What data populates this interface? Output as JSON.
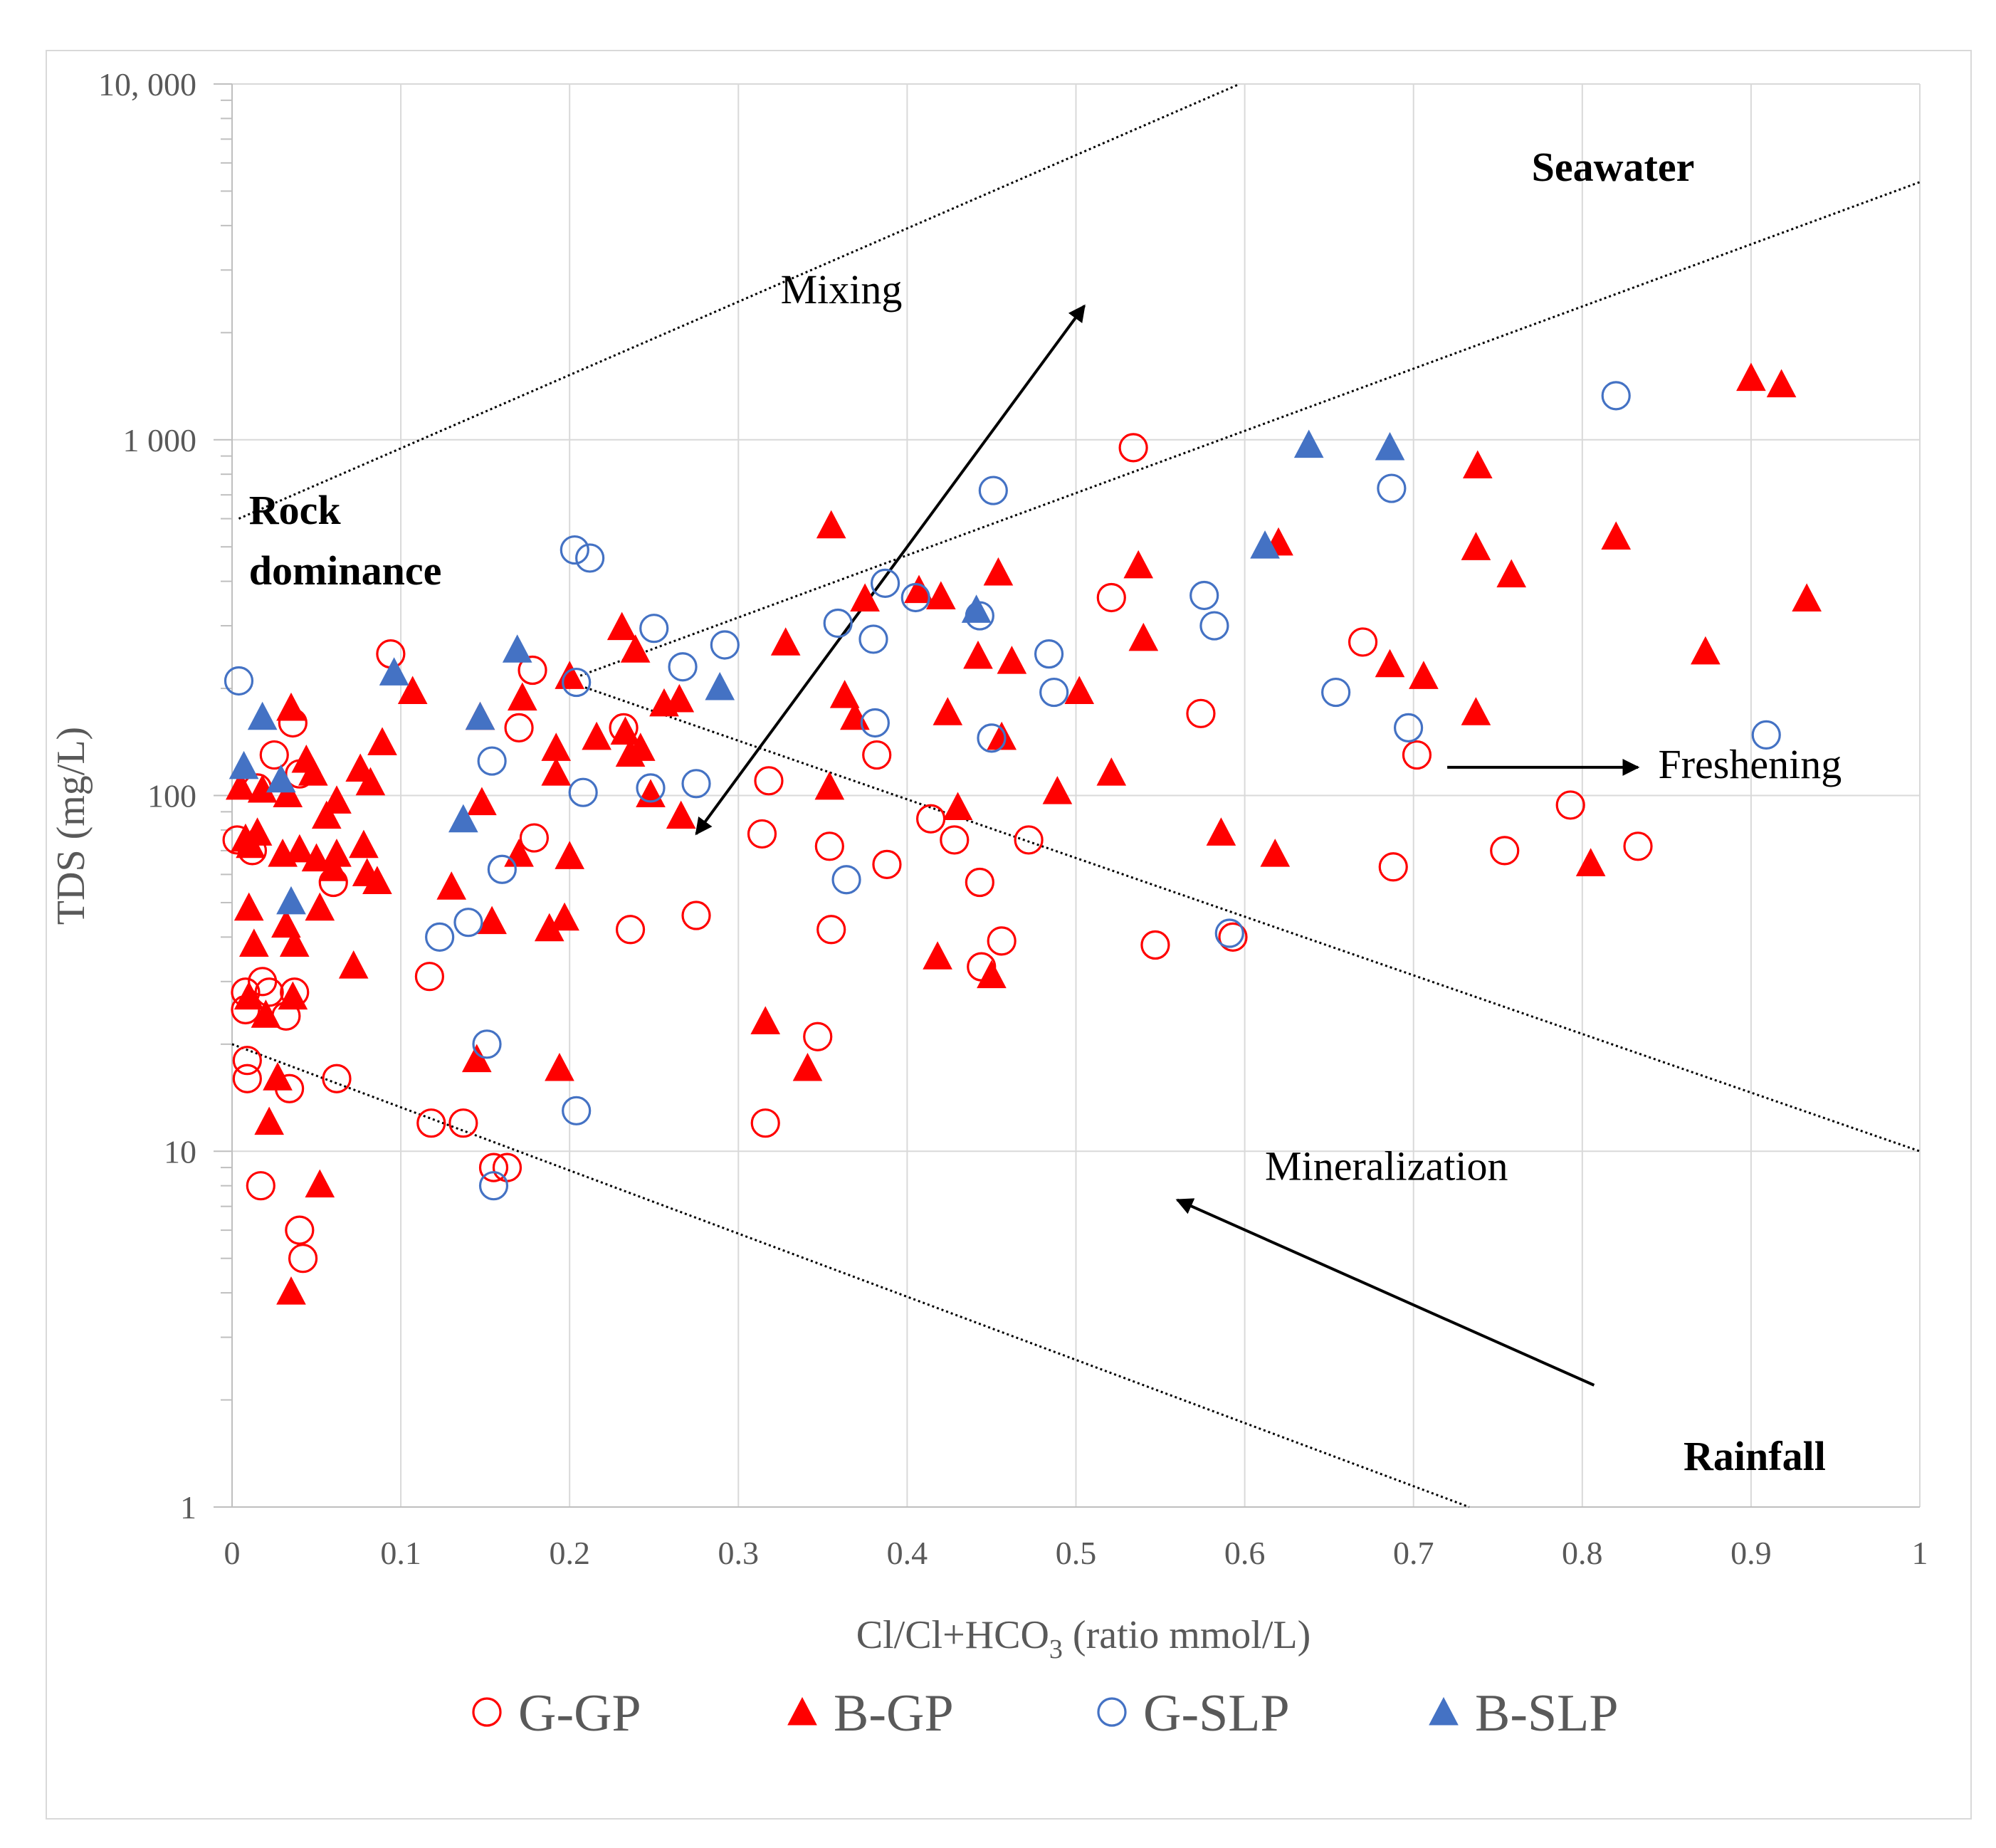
{
  "chart_data": {
    "type": "scatter",
    "xlabel_main": "Cl/Cl+HCO",
    "xlabel_sub": "3",
    "xlabel_tail": " (ratio mmol/L)",
    "ylabel": "TDS (mg/L)",
    "xlim": [
      0,
      1
    ],
    "ylim": [
      1,
      10000
    ],
    "y_scale": "log",
    "x_ticks": [
      {
        "v": 0,
        "label": "0"
      },
      {
        "v": 0.1,
        "label": "0.1"
      },
      {
        "v": 0.2,
        "label": "0.2"
      },
      {
        "v": 0.3,
        "label": "0.3"
      },
      {
        "v": 0.4,
        "label": "0.4"
      },
      {
        "v": 0.5,
        "label": "0.5"
      },
      {
        "v": 0.6,
        "label": "0.6"
      },
      {
        "v": 0.7,
        "label": "0.7"
      },
      {
        "v": 0.8,
        "label": "0.8"
      },
      {
        "v": 0.9,
        "label": "0.9"
      },
      {
        "v": 1,
        "label": "1"
      }
    ],
    "y_ticks": [
      {
        "v": 1,
        "label": "1"
      },
      {
        "v": 10,
        "label": "10"
      },
      {
        "v": 100,
        "label": "100"
      },
      {
        "v": 1000,
        "label": "1 000"
      },
      {
        "v": 10000,
        "label": "10, 000"
      }
    ],
    "grid": true,
    "legend_position": "bottom",
    "series": [
      {
        "name": "G-GP",
        "marker": "circle-open",
        "color": "#ff0000",
        "points": [
          [
            0.003,
            75
          ],
          [
            0.008,
            25
          ],
          [
            0.008,
            28
          ],
          [
            0.009,
            16
          ],
          [
            0.009,
            18
          ],
          [
            0.012,
            70
          ],
          [
            0.015,
            105
          ],
          [
            0.017,
            8
          ],
          [
            0.018,
            30
          ],
          [
            0.022,
            28
          ],
          [
            0.025,
            130
          ],
          [
            0.032,
            24
          ],
          [
            0.034,
            15
          ],
          [
            0.036,
            160
          ],
          [
            0.037,
            28
          ],
          [
            0.04,
            115
          ],
          [
            0.04,
            6
          ],
          [
            0.042,
            5
          ],
          [
            0.06,
            57
          ],
          [
            0.062,
            16
          ],
          [
            0.094,
            250
          ],
          [
            0.117,
            31
          ],
          [
            0.118,
            12
          ],
          [
            0.137,
            12
          ],
          [
            0.155,
            9
          ],
          [
            0.163,
            9
          ],
          [
            0.17,
            155
          ],
          [
            0.178,
            225
          ],
          [
            0.179,
            76
          ],
          [
            0.232,
            155
          ],
          [
            0.236,
            42
          ],
          [
            0.275,
            46
          ],
          [
            0.314,
            78
          ],
          [
            0.316,
            12
          ],
          [
            0.318,
            110
          ],
          [
            0.347,
            21
          ],
          [
            0.354,
            72
          ],
          [
            0.355,
            42
          ],
          [
            0.382,
            130
          ],
          [
            0.388,
            64
          ],
          [
            0.414,
            86
          ],
          [
            0.428,
            75
          ],
          [
            0.443,
            57
          ],
          [
            0.444,
            33
          ],
          [
            0.456,
            39
          ],
          [
            0.472,
            75
          ],
          [
            0.521,
            360
          ],
          [
            0.534,
            950
          ],
          [
            0.547,
            38
          ],
          [
            0.574,
            170
          ],
          [
            0.593,
            40
          ],
          [
            0.67,
            270
          ],
          [
            0.688,
            63
          ],
          [
            0.702,
            130
          ],
          [
            0.754,
            70
          ],
          [
            0.793,
            94
          ],
          [
            0.833,
            72
          ]
        ]
      },
      {
        "name": "B-GP",
        "marker": "triangle",
        "color": "#ff0000",
        "points": [
          [
            0.005,
            105
          ],
          [
            0.008,
            75
          ],
          [
            0.01,
            27
          ],
          [
            0.01,
            48
          ],
          [
            0.011,
            72
          ],
          [
            0.013,
            38
          ],
          [
            0.015,
            78
          ],
          [
            0.018,
            103
          ],
          [
            0.02,
            24
          ],
          [
            0.022,
            12
          ],
          [
            0.027,
            16
          ],
          [
            0.03,
            68
          ],
          [
            0.032,
            43
          ],
          [
            0.033,
            100
          ],
          [
            0.035,
            175
          ],
          [
            0.035,
            4
          ],
          [
            0.036,
            27
          ],
          [
            0.037,
            38
          ],
          [
            0.04,
            70
          ],
          [
            0.044,
            125
          ],
          [
            0.048,
            115
          ],
          [
            0.05,
            66
          ],
          [
            0.052,
            8
          ],
          [
            0.052,
            48
          ],
          [
            0.056,
            87
          ],
          [
            0.06,
            62
          ],
          [
            0.062,
            68
          ],
          [
            0.062,
            96
          ],
          [
            0.072,
            33
          ],
          [
            0.076,
            118
          ],
          [
            0.078,
            72
          ],
          [
            0.08,
            60
          ],
          [
            0.082,
            108
          ],
          [
            0.086,
            57
          ],
          [
            0.089,
            140
          ],
          [
            0.107,
            195
          ],
          [
            0.13,
            55
          ],
          [
            0.145,
            18
          ],
          [
            0.147,
            165
          ],
          [
            0.148,
            95
          ],
          [
            0.154,
            44
          ],
          [
            0.17,
            68
          ],
          [
            0.172,
            187
          ],
          [
            0.188,
            42
          ],
          [
            0.192,
            135
          ],
          [
            0.192,
            115
          ],
          [
            0.194,
            17
          ],
          [
            0.197,
            45
          ],
          [
            0.2,
            67
          ],
          [
            0.2,
            215
          ],
          [
            0.216,
            145
          ],
          [
            0.231,
            295
          ],
          [
            0.233,
            150
          ],
          [
            0.236,
            130
          ],
          [
            0.239,
            255
          ],
          [
            0.242,
            135
          ],
          [
            0.248,
            100
          ],
          [
            0.256,
            180
          ],
          [
            0.265,
            185
          ],
          [
            0.266,
            87
          ],
          [
            0.316,
            23
          ],
          [
            0.328,
            267
          ],
          [
            0.341,
            17
          ],
          [
            0.354,
            105
          ],
          [
            0.355,
            570
          ],
          [
            0.363,
            190
          ],
          [
            0.369,
            165
          ],
          [
            0.375,
            355
          ],
          [
            0.407,
            375
          ],
          [
            0.418,
            35
          ],
          [
            0.42,
            360
          ],
          [
            0.424,
            170
          ],
          [
            0.43,
            92
          ],
          [
            0.442,
            245
          ],
          [
            0.45,
            31
          ],
          [
            0.454,
            420
          ],
          [
            0.456,
            145
          ],
          [
            0.462,
            237
          ],
          [
            0.489,
            102
          ],
          [
            0.502,
            195
          ],
          [
            0.521,
            115
          ],
          [
            0.537,
            440
          ],
          [
            0.54,
            275
          ],
          [
            0.586,
            78
          ],
          [
            0.618,
            68
          ],
          [
            0.62,
            510
          ],
          [
            0.686,
            232
          ],
          [
            0.706,
            215
          ],
          [
            0.737,
            170
          ],
          [
            0.737,
            495
          ],
          [
            0.738,
            840
          ],
          [
            0.758,
            415
          ],
          [
            0.805,
            64
          ],
          [
            0.82,
            530
          ],
          [
            0.873,
            252
          ],
          [
            0.9,
            1480
          ],
          [
            0.918,
            1420
          ],
          [
            0.933,
            355
          ]
        ]
      },
      {
        "name": "G-SLP",
        "marker": "circle-open",
        "color": "#4472c4",
        "points": [
          [
            0.004,
            210
          ],
          [
            0.203,
            490
          ],
          [
            0.204,
            208
          ],
          [
            0.212,
            465
          ],
          [
            0.208,
            102
          ],
          [
            0.204,
            13
          ],
          [
            0.123,
            40
          ],
          [
            0.14,
            44
          ],
          [
            0.151,
            20
          ],
          [
            0.154,
            125
          ],
          [
            0.155,
            8
          ],
          [
            0.16,
            62
          ],
          [
            0.248,
            105
          ],
          [
            0.25,
            295
          ],
          [
            0.267,
            230
          ],
          [
            0.275,
            108
          ],
          [
            0.292,
            265
          ],
          [
            0.359,
            305
          ],
          [
            0.364,
            58
          ],
          [
            0.38,
            275
          ],
          [
            0.381,
            160
          ],
          [
            0.387,
            395
          ],
          [
            0.405,
            360
          ],
          [
            0.443,
            320
          ],
          [
            0.45,
            145
          ],
          [
            0.451,
            720
          ],
          [
            0.484,
            250
          ],
          [
            0.487,
            195
          ],
          [
            0.576,
            365
          ],
          [
            0.582,
            300
          ],
          [
            0.591,
            41
          ],
          [
            0.654,
            195
          ],
          [
            0.687,
            730
          ],
          [
            0.697,
            155
          ],
          [
            0.82,
            1330
          ],
          [
            0.909,
            148
          ]
        ]
      },
      {
        "name": "B-SLP",
        "marker": "triangle",
        "color": "#4472c4",
        "points": [
          [
            0.007,
            120
          ],
          [
            0.018,
            165
          ],
          [
            0.029,
            110
          ],
          [
            0.035,
            50
          ],
          [
            0.096,
            220
          ],
          [
            0.137,
            85
          ],
          [
            0.147,
            165
          ],
          [
            0.169,
            255
          ],
          [
            0.289,
            200
          ],
          [
            0.441,
            330
          ],
          [
            0.612,
            500
          ],
          [
            0.638,
            960
          ],
          [
            0.686,
            945
          ]
        ]
      }
    ],
    "guide_lines": [
      {
        "name": "upper-mixing-line",
        "from": [
          0.004,
          600
        ],
        "to": [
          0.597,
          10000
        ]
      },
      {
        "name": "lower-mixing-line",
        "from": [
          0.198,
          210
        ],
        "to": [
          1.0,
          5300
        ]
      },
      {
        "name": "upper-mineralization-line",
        "from": [
          0.198,
          210
        ],
        "to": [
          1.0,
          10
        ]
      },
      {
        "name": "lower-mineralization-line",
        "from": [
          0.0,
          20
        ],
        "to": [
          0.733,
          1
        ]
      }
    ],
    "arrows": [
      {
        "name": "mixing-arrow",
        "from": [
          0.275,
          78
        ],
        "to": [
          0.505,
          2380
        ],
        "heads": "both"
      },
      {
        "name": "freshening-arrow",
        "from": [
          0.72,
          120
        ],
        "to": [
          0.833,
          120
        ],
        "heads": "end"
      },
      {
        "name": "mineralization-arrow",
        "from": [
          0.807,
          2.2
        ],
        "to": [
          0.56,
          7.3
        ],
        "heads": "end"
      }
    ],
    "annotations": [
      {
        "name": "label-mixing",
        "text": "Mixing",
        "x": 0.325,
        "y": 2420,
        "bold": false
      },
      {
        "name": "label-seawater",
        "text": "Seawater",
        "x": 0.77,
        "y": 5350,
        "bold": true
      },
      {
        "name": "label-rock",
        "text": "Rock",
        "x": 0.01,
        "y": 580,
        "bold": true
      },
      {
        "name": "label-dominance",
        "text": "dominance",
        "x": 0.01,
        "y": 392,
        "bold": true
      },
      {
        "name": "label-freshening",
        "text": "Freshening",
        "x": 0.845,
        "y": 112,
        "bold": false
      },
      {
        "name": "label-mineralization",
        "text": "Mineralization",
        "x": 0.612,
        "y": 8.3,
        "bold": false
      },
      {
        "name": "label-rainfall",
        "text": "Rainfall",
        "x": 0.86,
        "y": 1.27,
        "bold": true
      }
    ]
  }
}
